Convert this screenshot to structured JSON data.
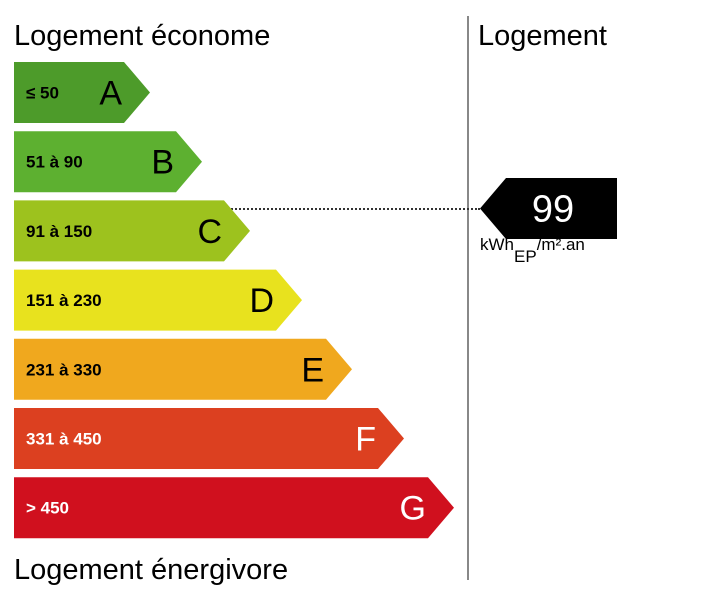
{
  "header": {
    "top_label": "Logement économe",
    "bottom_label": "Logement énergivore",
    "right_title": "Logement"
  },
  "indicator": {
    "value": "99",
    "unit_main": "kWh",
    "unit_sub": "EP",
    "unit_tail": "/m².an",
    "class": "C"
  },
  "chart_data": {
    "type": "bar",
    "categories": [
      "A",
      "B",
      "C",
      "D",
      "E",
      "F",
      "G"
    ],
    "ranges": [
      "≤ 50",
      "51 à 90",
      "91 à 150",
      "151 à 230",
      "231 à 330",
      "331 à 450",
      "> 450"
    ],
    "colors": [
      "#4d9b2a",
      "#5db030",
      "#9dc21e",
      "#e8e21e",
      "#f0a81e",
      "#dc4020",
      "#d0101e"
    ],
    "range_text_colors": [
      "#000000",
      "#000000",
      "#000000",
      "#000000",
      "#000000",
      "#ffffff",
      "#ffffff"
    ],
    "letter_colors": [
      "#000000",
      "#000000",
      "#000000",
      "#000000",
      "#000000",
      "#ffffff",
      "#ffffff"
    ],
    "value": 99,
    "value_class": "C"
  }
}
